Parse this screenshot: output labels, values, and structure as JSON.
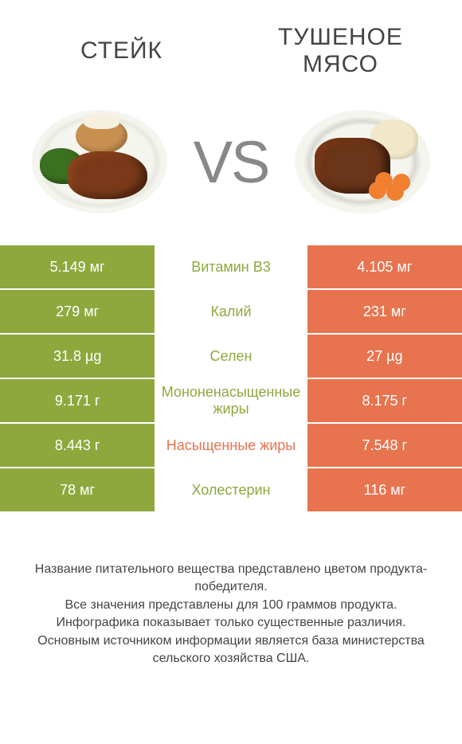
{
  "header": {
    "left_title": "СТЕЙК",
    "right_title": "ТУШЕНОЕ МЯСО",
    "vs_label": "VS"
  },
  "colors": {
    "left": "#8fa83e",
    "right": "#e8744f",
    "vs_text": "#888888",
    "title_text": "#444444",
    "footer_text": "#444444",
    "background": "#ffffff"
  },
  "rows": [
    {
      "left": "5.149 мг",
      "label": "Витамин B3",
      "right": "4.105 мг",
      "winner": "left"
    },
    {
      "left": "279 мг",
      "label": "Калий",
      "right": "231 мг",
      "winner": "left"
    },
    {
      "left": "31.8 µg",
      "label": "Селен",
      "right": "27 µg",
      "winner": "left"
    },
    {
      "left": "9.171 г",
      "label": "Мононенасыщенные жиры",
      "right": "8.175 г",
      "winner": "left"
    },
    {
      "left": "8.443 г",
      "label": "Насыщенные жиры",
      "right": "7.548 г",
      "winner": "right"
    },
    {
      "left": "78 мг",
      "label": "Холестерин",
      "right": "116 мг",
      "winner": "left"
    }
  ],
  "footer": {
    "line1": "Название питательного вещества представлено цветом продукта-победителя.",
    "line2": "Все значения представлены для 100 граммов продукта.",
    "line3": "Инфографика показывает только существенные различия.",
    "line4": "Основным источником информации является база министерства сельского хозяйства США."
  },
  "typography": {
    "title_fontsize": 30,
    "vs_fontsize": 74,
    "cell_fontsize": 18,
    "footer_fontsize": 16
  }
}
